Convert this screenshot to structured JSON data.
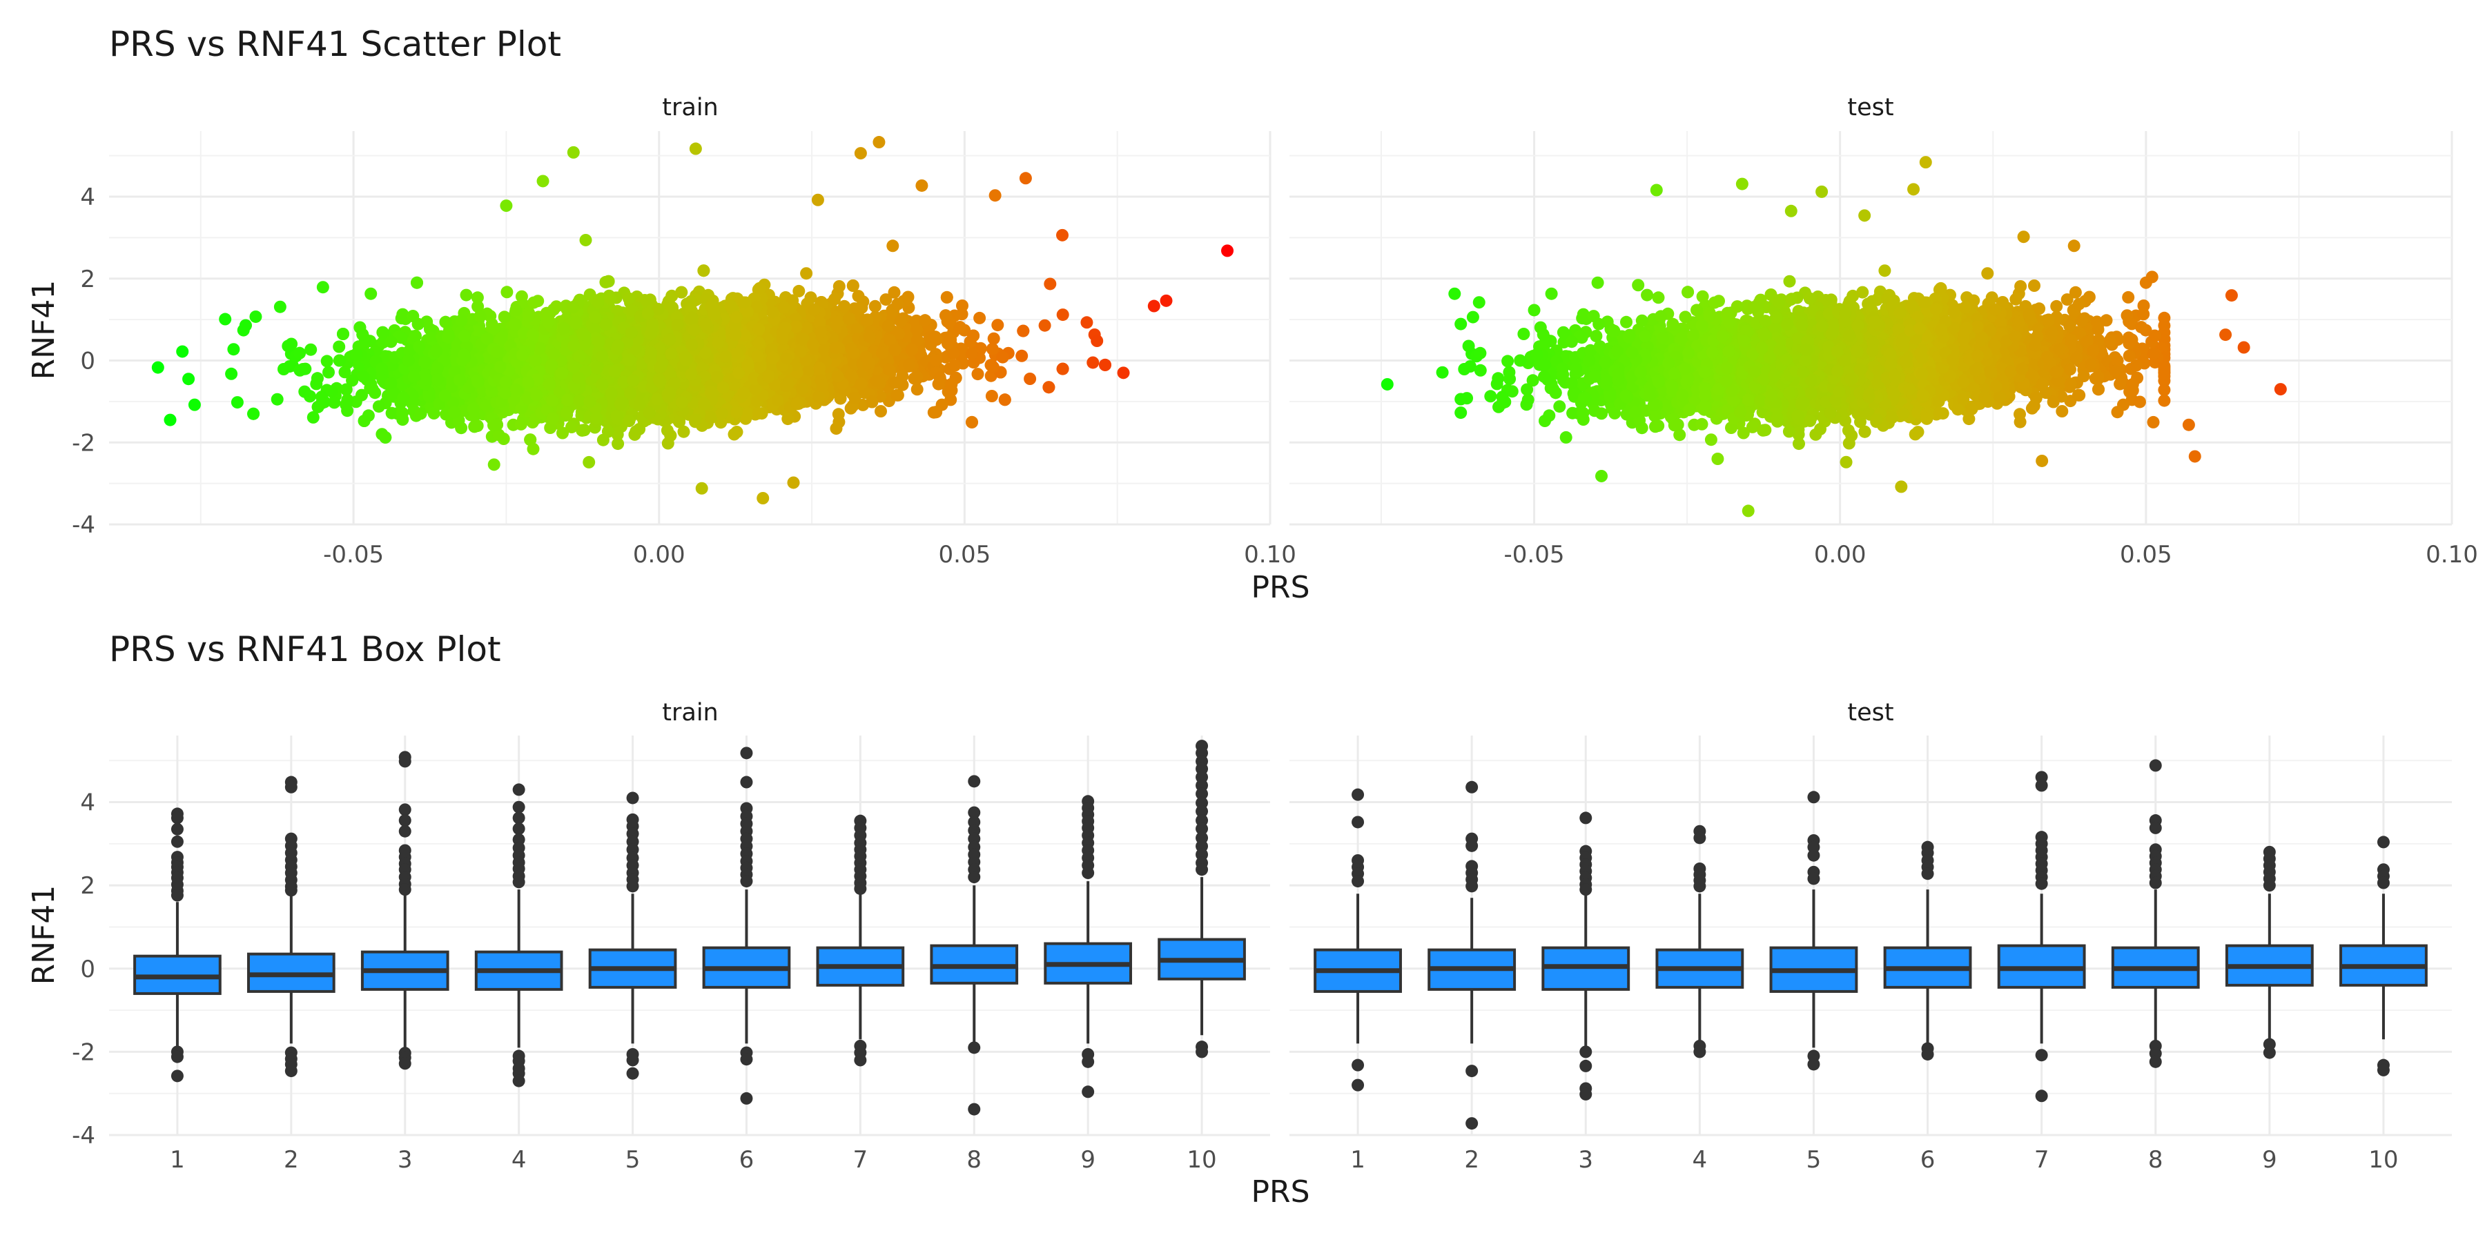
{
  "figure": {
    "panel_background": "#ffffff",
    "grid_color": "#ebebeb",
    "tick_label_color": "#4d4d4d",
    "title_color": "#1a1a1a"
  },
  "chart_data": [
    {
      "type": "scatter",
      "title": "PRS vs RNF41 Scatter Plot",
      "xlabel": "PRS",
      "ylabel": "RNF41",
      "facets": [
        "train",
        "test"
      ],
      "xlim": [
        -0.09,
        0.1
      ],
      "ylim": [
        -4.0,
        5.6
      ],
      "x_ticks": [
        -0.05,
        0.0,
        0.05,
        0.1
      ],
      "x_tick_labels": [
        "-0.05",
        "0.00",
        "0.05",
        "0.10"
      ],
      "y_ticks": [
        -4,
        -2,
        0,
        2,
        4
      ],
      "y_tick_labels": [
        "-4",
        "-2",
        "0",
        "2",
        "4"
      ],
      "grid": true,
      "color_scale": {
        "low": "#00ff00",
        "high": "#ff0000",
        "variable": "PRS"
      },
      "series": [
        {
          "facet": "train",
          "x_center": 0.0,
          "x_sd": 0.02,
          "y_sd": 0.75,
          "x_range": [
            -0.082,
            0.093
          ],
          "points": [
            [
              -0.082,
              -0.17
            ],
            [
              -0.08,
              -1.45
            ],
            [
              -0.078,
              0.22
            ],
            [
              -0.077,
              -0.45
            ],
            [
              -0.076,
              -1.08
            ],
            [
              -0.071,
              1.01
            ],
            [
              -0.069,
              -1.02
            ],
            [
              -0.068,
              0.74
            ],
            [
              -0.066,
              1.07
            ],
            [
              -0.062,
              1.31
            ],
            [
              -0.058,
              -0.76
            ],
            [
              -0.055,
              1.79
            ],
            [
              -0.027,
              -2.54
            ],
            [
              -0.025,
              3.78
            ],
            [
              -0.019,
              4.38
            ],
            [
              -0.014,
              5.08
            ],
            [
              -0.012,
              2.94
            ],
            [
              0.006,
              5.17
            ],
            [
              0.007,
              -3.12
            ],
            [
              0.017,
              -3.36
            ],
            [
              0.022,
              -2.98
            ],
            [
              0.026,
              3.92
            ],
            [
              0.029,
              -1.66
            ],
            [
              0.033,
              5.06
            ],
            [
              0.036,
              5.33
            ],
            [
              0.043,
              4.27
            ],
            [
              0.055,
              4.03
            ],
            [
              0.06,
              4.45
            ],
            [
              0.064,
              1.87
            ],
            [
              0.066,
              3.06
            ],
            [
              0.07,
              0.93
            ],
            [
              0.071,
              -0.05
            ],
            [
              0.076,
              -0.3
            ],
            [
              0.081,
              1.33
            ],
            [
              0.083,
              1.46
            ],
            [
              0.093,
              2.68
            ]
          ]
        },
        {
          "facet": "test",
          "x_center": 0.0,
          "x_sd": 0.02,
          "y_sd": 0.75,
          "x_range": [
            -0.074,
            0.073
          ],
          "points": [
            [
              -0.074,
              -0.58
            ],
            [
              -0.065,
              -0.29
            ],
            [
              -0.063,
              1.63
            ],
            [
              -0.061,
              -0.92
            ],
            [
              -0.06,
              1.06
            ],
            [
              -0.059,
              1.42
            ],
            [
              -0.054,
              -0.45
            ],
            [
              -0.05,
              1.23
            ],
            [
              -0.039,
              -2.82
            ],
            [
              -0.033,
              1.84
            ],
            [
              -0.03,
              4.16
            ],
            [
              -0.02,
              -2.4
            ],
            [
              -0.016,
              4.31
            ],
            [
              -0.015,
              -3.67
            ],
            [
              -0.008,
              3.65
            ],
            [
              -0.003,
              4.12
            ],
            [
              0.001,
              -2.48
            ],
            [
              0.004,
              3.54
            ],
            [
              0.01,
              -3.08
            ],
            [
              0.012,
              4.18
            ],
            [
              0.014,
              4.84
            ],
            [
              0.03,
              3.02
            ],
            [
              0.033,
              -2.45
            ],
            [
              0.049,
              -1.01
            ],
            [
              0.05,
              1.9
            ],
            [
              0.051,
              2.04
            ],
            [
              0.057,
              -1.57
            ],
            [
              0.058,
              -2.34
            ],
            [
              0.063,
              0.63
            ],
            [
              0.064,
              1.59
            ],
            [
              0.066,
              0.32
            ],
            [
              0.072,
              -0.7
            ]
          ]
        }
      ]
    },
    {
      "type": "box",
      "title": "PRS vs RNF41 Box Plot",
      "xlabel": "PRS",
      "ylabel": "RNF41",
      "facets": [
        "train",
        "test"
      ],
      "categories": [
        "1",
        "2",
        "3",
        "4",
        "5",
        "6",
        "7",
        "8",
        "9",
        "10"
      ],
      "ylim": [
        -4.0,
        5.6
      ],
      "y_ticks": [
        -4,
        -2,
        0,
        2,
        4
      ],
      "y_tick_labels": [
        "-4",
        "-2",
        "0",
        "2",
        "4"
      ],
      "grid": true,
      "box_fill": "#1e90ff",
      "box_stroke": "#333333",
      "series": [
        {
          "facet": "train",
          "boxes": [
            {
              "category": "1",
              "whisker_low": -1.9,
              "q1": -0.6,
              "median": -0.2,
              "q3": 0.3,
              "whisker_high": 1.6,
              "outliers": [
                3.72,
                3.62,
                3.35,
                3.05,
                2.68,
                2.55,
                2.44,
                2.31,
                2.18,
                2.02,
                1.87,
                1.76,
                -2.0,
                -2.12,
                -2.58
              ]
            },
            {
              "category": "2",
              "whisker_low": -1.8,
              "q1": -0.55,
              "median": -0.15,
              "q3": 0.35,
              "whisker_high": 1.8,
              "outliers": [
                4.48,
                4.36,
                3.12,
                2.95,
                2.78,
                2.61,
                2.45,
                2.3,
                2.13,
                1.97,
                1.88,
                -2.02,
                -2.17,
                -2.3,
                -2.46
              ]
            },
            {
              "category": "3",
              "whisker_low": -1.9,
              "q1": -0.5,
              "median": -0.05,
              "q3": 0.4,
              "whisker_high": 1.8,
              "outliers": [
                5.08,
                4.98,
                3.82,
                3.56,
                3.3,
                2.84,
                2.68,
                2.52,
                2.38,
                2.2,
                2.03,
                1.9,
                -2.03,
                -2.14,
                -2.28
              ]
            },
            {
              "category": "4",
              "whisker_low": -1.9,
              "q1": -0.5,
              "median": -0.05,
              "q3": 0.4,
              "whisker_high": 1.9,
              "outliers": [
                4.3,
                3.88,
                3.62,
                3.36,
                3.1,
                2.9,
                2.72,
                2.55,
                2.4,
                2.22,
                2.08,
                -2.1,
                -2.22,
                -2.4,
                -2.52,
                -2.7
              ]
            },
            {
              "category": "5",
              "whisker_low": -1.8,
              "q1": -0.45,
              "median": 0.0,
              "q3": 0.45,
              "whisker_high": 1.8,
              "outliers": [
                4.1,
                3.58,
                3.42,
                3.24,
                3.05,
                2.86,
                2.66,
                2.48,
                2.3,
                2.14,
                1.98,
                -2.06,
                -2.2,
                -2.52
              ]
            },
            {
              "category": "6",
              "whisker_low": -1.8,
              "q1": -0.45,
              "median": 0.0,
              "q3": 0.5,
              "whisker_high": 1.9,
              "outliers": [
                5.18,
                4.48,
                3.85,
                3.66,
                3.48,
                3.3,
                3.12,
                2.94,
                2.76,
                2.58,
                2.42,
                2.26,
                2.1,
                -2.02,
                -2.18,
                -3.12
              ]
            },
            {
              "category": "7",
              "whisker_low": -1.7,
              "q1": -0.4,
              "median": 0.05,
              "q3": 0.5,
              "whisker_high": 1.9,
              "outliers": [
                3.55,
                3.38,
                3.2,
                3.02,
                2.86,
                2.7,
                2.54,
                2.38,
                2.22,
                2.06,
                1.92,
                -1.86,
                -2.02,
                -2.2
              ]
            },
            {
              "category": "8",
              "whisker_low": -1.8,
              "q1": -0.35,
              "median": 0.05,
              "q3": 0.55,
              "whisker_high": 2.0,
              "outliers": [
                4.5,
                3.75,
                3.52,
                3.32,
                3.12,
                2.92,
                2.74,
                2.56,
                2.38,
                2.2,
                -1.9,
                -3.38
              ]
            },
            {
              "category": "9",
              "whisker_low": -1.8,
              "q1": -0.35,
              "median": 0.1,
              "q3": 0.6,
              "whisker_high": 2.1,
              "outliers": [
                4.02,
                3.86,
                3.7,
                3.54,
                3.38,
                3.2,
                3.02,
                2.84,
                2.66,
                2.48,
                2.3,
                -2.06,
                -2.24,
                -2.96
              ]
            },
            {
              "category": "10",
              "whisker_low": -1.6,
              "q1": -0.25,
              "median": 0.2,
              "q3": 0.7,
              "whisker_high": 2.2,
              "outliers": [
                5.35,
                5.18,
                4.98,
                4.8,
                4.6,
                4.4,
                4.2,
                3.98,
                3.78,
                3.56,
                3.36,
                3.14,
                2.94,
                2.74,
                2.54,
                2.38,
                -1.88,
                -2.0
              ]
            }
          ]
        },
        {
          "facet": "test",
          "boxes": [
            {
              "category": "1",
              "whisker_low": -1.8,
              "q1": -0.55,
              "median": -0.05,
              "q3": 0.45,
              "whisker_high": 1.8,
              "outliers": [
                4.18,
                3.52,
                2.6,
                2.44,
                2.28,
                2.1,
                -2.32,
                -2.8
              ]
            },
            {
              "category": "2",
              "whisker_low": -1.8,
              "q1": -0.5,
              "median": 0.0,
              "q3": 0.45,
              "whisker_high": 1.7,
              "outliers": [
                4.36,
                3.12,
                2.95,
                2.46,
                2.3,
                2.14,
                1.98,
                -2.46,
                -3.72
              ]
            },
            {
              "category": "3",
              "whisker_low": -1.9,
              "q1": -0.5,
              "median": 0.05,
              "q3": 0.5,
              "whisker_high": 1.8,
              "outliers": [
                3.62,
                2.82,
                2.66,
                2.5,
                2.34,
                2.18,
                2.02,
                1.9,
                -2.0,
                -2.34,
                -2.88,
                -3.02
              ]
            },
            {
              "category": "4",
              "whisker_low": -1.8,
              "q1": -0.45,
              "median": 0.0,
              "q3": 0.45,
              "whisker_high": 1.8,
              "outliers": [
                3.3,
                3.14,
                2.4,
                2.26,
                2.12,
                1.98,
                -1.86,
                -2.0
              ]
            },
            {
              "category": "5",
              "whisker_low": -1.9,
              "q1": -0.55,
              "median": -0.05,
              "q3": 0.5,
              "whisker_high": 1.9,
              "outliers": [
                4.12,
                3.08,
                2.92,
                2.72,
                2.32,
                2.16,
                -2.1,
                -2.3
              ]
            },
            {
              "category": "6",
              "whisker_low": -1.8,
              "q1": -0.45,
              "median": 0.0,
              "q3": 0.5,
              "whisker_high": 1.9,
              "outliers": [
                2.92,
                2.78,
                2.6,
                2.44,
                2.28,
                -1.92,
                -2.06
              ]
            },
            {
              "category": "7",
              "whisker_low": -1.8,
              "q1": -0.45,
              "median": 0.0,
              "q3": 0.55,
              "whisker_high": 1.8,
              "outliers": [
                4.6,
                4.4,
                3.16,
                3.0,
                2.84,
                2.68,
                2.52,
                2.36,
                2.2,
                2.04,
                -2.08,
                -3.06
              ]
            },
            {
              "category": "8",
              "whisker_low": -1.8,
              "q1": -0.45,
              "median": 0.0,
              "q3": 0.5,
              "whisker_high": 1.9,
              "outliers": [
                4.88,
                3.56,
                3.38,
                2.86,
                2.7,
                2.54,
                2.38,
                2.22,
                2.06,
                -1.86,
                -2.04,
                -2.24
              ]
            },
            {
              "category": "9",
              "whisker_low": -1.7,
              "q1": -0.4,
              "median": 0.05,
              "q3": 0.55,
              "whisker_high": 1.8,
              "outliers": [
                2.8,
                2.64,
                2.48,
                2.32,
                2.16,
                2.0,
                -1.82,
                -2.02
              ]
            },
            {
              "category": "10",
              "whisker_low": -1.7,
              "q1": -0.4,
              "median": 0.05,
              "q3": 0.55,
              "whisker_high": 1.8,
              "outliers": [
                3.04,
                2.38,
                2.22,
                2.06,
                -2.32,
                -2.44
              ]
            }
          ]
        }
      ]
    }
  ]
}
